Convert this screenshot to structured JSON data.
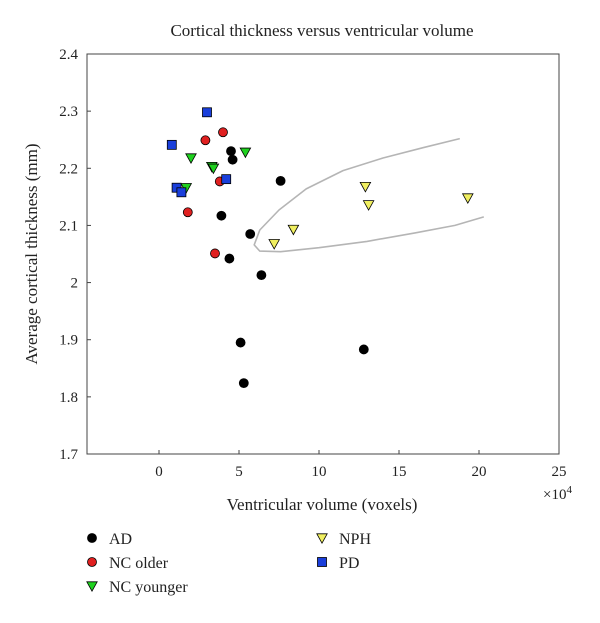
{
  "chart_data": {
    "type": "scatter",
    "title": "Cortical thickness versus ventricular volume",
    "xlabel": "Ventricular volume (voxels)",
    "ylabel": "Average cortical thickness (mm)",
    "x_multiplier_label": "×10",
    "x_multiplier_exponent": "4",
    "xlim": [
      -4.5,
      25
    ],
    "ylim": [
      1.7,
      2.4
    ],
    "x_ticks": [
      0,
      5,
      10,
      15,
      20,
      25
    ],
    "y_ticks": [
      1.7,
      1.8,
      1.9,
      2.0,
      2.1,
      2.2,
      2.3,
      2.4
    ],
    "x_tick_labels": [
      "0",
      "5",
      "10",
      "15",
      "20",
      "25"
    ],
    "y_tick_labels": [
      "1.7",
      "1.8",
      "1.9",
      "2",
      "2.1",
      "2.2",
      "2.3",
      "2.4"
    ],
    "grid": false,
    "legend_position": "bottom",
    "series": [
      {
        "name": "AD",
        "marker": "circle",
        "color": "#000000",
        "points": [
          [
            4.5,
            2.23
          ],
          [
            4.6,
            2.215
          ],
          [
            7.6,
            2.178
          ],
          [
            3.9,
            2.117
          ],
          [
            5.7,
            2.085
          ],
          [
            4.4,
            2.042
          ],
          [
            6.4,
            2.013
          ],
          [
            5.1,
            1.895
          ],
          [
            5.3,
            1.824
          ],
          [
            12.8,
            1.883
          ]
        ]
      },
      {
        "name": "NC older",
        "marker": "circle",
        "color": "#e02020",
        "points": [
          [
            4.0,
            2.263
          ],
          [
            2.9,
            2.249
          ],
          [
            3.8,
            2.177
          ],
          [
            1.8,
            2.123
          ],
          [
            3.5,
            2.051
          ]
        ]
      },
      {
        "name": "NC younger",
        "marker": "triangle-down",
        "color": "#1fd11f",
        "points": [
          [
            5.4,
            2.228
          ],
          [
            2.0,
            2.218
          ],
          [
            3.3,
            2.203
          ],
          [
            3.4,
            2.2
          ],
          [
            1.7,
            2.166
          ]
        ]
      },
      {
        "name": "NPH",
        "marker": "triangle-down",
        "color": "#f0ef60",
        "points": [
          [
            12.9,
            2.168
          ],
          [
            13.1,
            2.136
          ],
          [
            19.3,
            2.148
          ],
          [
            8.4,
            2.093
          ],
          [
            7.2,
            2.068
          ]
        ]
      },
      {
        "name": "PD",
        "marker": "square",
        "color": "#1a3fdb",
        "points": [
          [
            3.0,
            2.298
          ],
          [
            0.8,
            2.241
          ],
          [
            4.2,
            2.181
          ],
          [
            1.1,
            2.166
          ],
          [
            1.4,
            2.158
          ]
        ]
      }
    ],
    "curve": {
      "color": "#b5b5b5",
      "points": [
        [
          18.8,
          2.252
        ],
        [
          16.5,
          2.236
        ],
        [
          14.0,
          2.218
        ],
        [
          11.5,
          2.196
        ],
        [
          9.2,
          2.164
        ],
        [
          7.5,
          2.127
        ],
        [
          6.3,
          2.092
        ],
        [
          5.95,
          2.066
        ],
        [
          6.3,
          2.055
        ],
        [
          7.6,
          2.054
        ],
        [
          10.0,
          2.061
        ],
        [
          13.0,
          2.072
        ],
        [
          16.0,
          2.087
        ],
        [
          18.5,
          2.1
        ],
        [
          20.3,
          2.115
        ]
      ]
    }
  }
}
